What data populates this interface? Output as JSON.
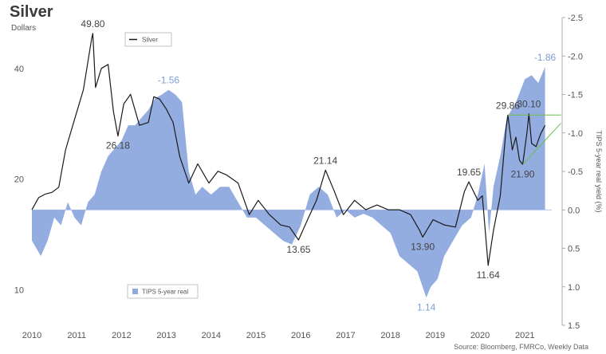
{
  "header": {
    "title": "Silver",
    "subtitle": "Dollars",
    "source": "Source: Bloomberg, FMRCo, Weekly Data"
  },
  "chart_data": {
    "type": "line",
    "x_range": [
      2010,
      2021.6
    ],
    "x_ticks": [
      "2010",
      "2011",
      "2012",
      "2013",
      "2014",
      "2015",
      "2016",
      "2017",
      "2018",
      "2019",
      "2020",
      "2021"
    ],
    "colors": {
      "silver": "#1a1a1a",
      "tips": "#8ea9df",
      "trend": "#6abf4b",
      "annotation_blue": "#7f9fd6"
    },
    "series": [
      {
        "name": "Silver",
        "axis": "left",
        "scale": "log",
        "ylim": [
          8,
          55
        ],
        "y_ticks": [
          "10",
          "20",
          "40"
        ],
        "points": [
          [
            2010.0,
            16.5
          ],
          [
            2010.15,
            17.8
          ],
          [
            2010.3,
            18.2
          ],
          [
            2010.45,
            18.4
          ],
          [
            2010.6,
            19.0
          ],
          [
            2010.75,
            24.0
          ],
          [
            2010.95,
            29.0
          ],
          [
            2011.15,
            35.0
          ],
          [
            2011.33,
            48.0
          ],
          [
            2011.36,
            49.8
          ],
          [
            2011.42,
            35.5
          ],
          [
            2011.55,
            40.0
          ],
          [
            2011.7,
            41.0
          ],
          [
            2011.82,
            30.5
          ],
          [
            2011.92,
            26.18
          ],
          [
            2012.05,
            32.0
          ],
          [
            2012.2,
            34.0
          ],
          [
            2012.4,
            28.0
          ],
          [
            2012.6,
            28.5
          ],
          [
            2012.72,
            33.5
          ],
          [
            2012.85,
            33.0
          ],
          [
            2013.0,
            31.0
          ],
          [
            2013.15,
            28.5
          ],
          [
            2013.3,
            23.0
          ],
          [
            2013.5,
            19.5
          ],
          [
            2013.7,
            22.0
          ],
          [
            2013.95,
            19.5
          ],
          [
            2014.15,
            21.0
          ],
          [
            2014.35,
            20.5
          ],
          [
            2014.6,
            19.5
          ],
          [
            2014.85,
            16.0
          ],
          [
            2015.05,
            17.5
          ],
          [
            2015.3,
            16.0
          ],
          [
            2015.55,
            15.0
          ],
          [
            2015.75,
            14.8
          ],
          [
            2015.95,
            13.65
          ],
          [
            2016.15,
            15.5
          ],
          [
            2016.35,
            17.5
          ],
          [
            2016.55,
            21.14
          ],
          [
            2016.75,
            18.5
          ],
          [
            2016.95,
            16.0
          ],
          [
            2017.2,
            17.5
          ],
          [
            2017.45,
            16.5
          ],
          [
            2017.7,
            17.0
          ],
          [
            2017.95,
            16.5
          ],
          [
            2018.2,
            16.5
          ],
          [
            2018.45,
            16.0
          ],
          [
            2018.65,
            14.5
          ],
          [
            2018.72,
            13.9
          ],
          [
            2018.95,
            15.5
          ],
          [
            2019.2,
            15.0
          ],
          [
            2019.45,
            14.8
          ],
          [
            2019.65,
            18.5
          ],
          [
            2019.75,
            19.65
          ],
          [
            2019.95,
            17.5
          ],
          [
            2020.05,
            18.0
          ],
          [
            2020.18,
            11.64
          ],
          [
            2020.3,
            14.5
          ],
          [
            2020.45,
            18.0
          ],
          [
            2020.58,
            27.5
          ],
          [
            2020.62,
            29.86
          ],
          [
            2020.72,
            24.0
          ],
          [
            2020.8,
            26.0
          ],
          [
            2020.88,
            22.5
          ],
          [
            2020.95,
            21.9
          ],
          [
            2021.05,
            27.0
          ],
          [
            2021.09,
            30.1
          ],
          [
            2021.15,
            25.0
          ],
          [
            2021.25,
            24.5
          ],
          [
            2021.35,
            26.5
          ],
          [
            2021.45,
            28.0
          ]
        ]
      },
      {
        "name": "TIPS 5-year real",
        "axis": "right",
        "ylabel": "TIPS 5-year real yield (%)",
        "inverted": true,
        "ylim": [
          1.5,
          -2.5
        ],
        "y_ticks": [
          "-2.5",
          "-2.0",
          "-1.5",
          "-1.0",
          "-0.5",
          "0.0",
          "0.5",
          "1.0",
          "1.5"
        ],
        "points": [
          [
            2010.0,
            0.4
          ],
          [
            2010.1,
            0.5
          ],
          [
            2010.2,
            0.6
          ],
          [
            2010.35,
            0.4
          ],
          [
            2010.5,
            0.1
          ],
          [
            2010.65,
            0.2
          ],
          [
            2010.8,
            -0.1
          ],
          [
            2010.95,
            0.1
          ],
          [
            2011.1,
            0.2
          ],
          [
            2011.25,
            -0.1
          ],
          [
            2011.4,
            -0.2
          ],
          [
            2011.55,
            -0.5
          ],
          [
            2011.7,
            -0.7
          ],
          [
            2011.85,
            -0.8
          ],
          [
            2012.0,
            -0.9
          ],
          [
            2012.15,
            -1.1
          ],
          [
            2012.3,
            -1.1
          ],
          [
            2012.45,
            -1.2
          ],
          [
            2012.6,
            -1.3
          ],
          [
            2012.75,
            -1.45
          ],
          [
            2012.9,
            -1.5
          ],
          [
            2013.05,
            -1.56
          ],
          [
            2013.2,
            -1.5
          ],
          [
            2013.35,
            -1.4
          ],
          [
            2013.5,
            -0.5
          ],
          [
            2013.65,
            -0.2
          ],
          [
            2013.8,
            -0.3
          ],
          [
            2014.0,
            -0.2
          ],
          [
            2014.2,
            -0.3
          ],
          [
            2014.4,
            -0.3
          ],
          [
            2014.6,
            -0.1
          ],
          [
            2014.8,
            0.1
          ],
          [
            2015.0,
            0.1
          ],
          [
            2015.2,
            0.2
          ],
          [
            2015.4,
            0.3
          ],
          [
            2015.6,
            0.4
          ],
          [
            2015.8,
            0.45
          ],
          [
            2016.0,
            0.2
          ],
          [
            2016.2,
            -0.2
          ],
          [
            2016.4,
            -0.3
          ],
          [
            2016.6,
            -0.2
          ],
          [
            2016.8,
            0.1
          ],
          [
            2017.0,
            0.0
          ],
          [
            2017.2,
            0.1
          ],
          [
            2017.4,
            0.05
          ],
          [
            2017.6,
            0.1
          ],
          [
            2017.8,
            0.2
          ],
          [
            2018.0,
            0.3
          ],
          [
            2018.2,
            0.6
          ],
          [
            2018.4,
            0.7
          ],
          [
            2018.6,
            0.8
          ],
          [
            2018.8,
            1.14
          ],
          [
            2018.9,
            1.0
          ],
          [
            2019.05,
            0.9
          ],
          [
            2019.2,
            0.6
          ],
          [
            2019.4,
            0.4
          ],
          [
            2019.6,
            0.2
          ],
          [
            2019.8,
            0.1
          ],
          [
            2019.95,
            -0.2
          ],
          [
            2020.1,
            -0.6
          ],
          [
            2020.2,
            0.3
          ],
          [
            2020.3,
            -0.3
          ],
          [
            2020.45,
            -0.7
          ],
          [
            2020.6,
            -1.2
          ],
          [
            2020.8,
            -1.4
          ],
          [
            2021.0,
            -1.7
          ],
          [
            2021.15,
            -1.75
          ],
          [
            2021.3,
            -1.65
          ],
          [
            2021.45,
            -1.86
          ]
        ]
      }
    ],
    "trendlines": [
      {
        "from": [
          2020.62,
          29.86
        ],
        "to": [
          2021.45,
          29.86
        ]
      },
      {
        "from": [
          2020.95,
          21.9
        ],
        "to": [
          2021.45,
          27.0
        ]
      }
    ],
    "annotations": [
      {
        "text": "49.80",
        "series": "Silver",
        "x": 2011.36,
        "y": 49.8,
        "pos": "above"
      },
      {
        "text": "26.18",
        "series": "Silver",
        "x": 2011.92,
        "y": 26.18,
        "pos": "below"
      },
      {
        "text": "21.14",
        "series": "Silver",
        "x": 2016.55,
        "y": 21.14,
        "pos": "above"
      },
      {
        "text": "13.65",
        "series": "Silver",
        "x": 2015.95,
        "y": 13.65,
        "pos": "below"
      },
      {
        "text": "13.90",
        "series": "Silver",
        "x": 2018.72,
        "y": 13.9,
        "pos": "below"
      },
      {
        "text": "19.65",
        "series": "Silver",
        "x": 2019.75,
        "y": 19.65,
        "pos": "above"
      },
      {
        "text": "11.64",
        "series": "Silver",
        "x": 2020.18,
        "y": 11.64,
        "pos": "below"
      },
      {
        "text": "29.86",
        "series": "Silver",
        "x": 2020.62,
        "y": 29.86,
        "pos": "above"
      },
      {
        "text": "30.10",
        "series": "Silver",
        "x": 2021.09,
        "y": 30.1,
        "pos": "above"
      },
      {
        "text": "21.90",
        "series": "Silver",
        "x": 2020.95,
        "y": 21.9,
        "pos": "below"
      },
      {
        "text": "-1.56",
        "series": "TIPS 5-year real",
        "x": 2013.05,
        "y": -1.56,
        "pos": "above"
      },
      {
        "text": "1.14",
        "series": "TIPS 5-year real",
        "x": 2018.8,
        "y": 1.14,
        "pos": "below"
      },
      {
        "text": "-1.86",
        "series": "TIPS 5-year real",
        "x": 2021.45,
        "y": -1.86,
        "pos": "above"
      }
    ],
    "legend": [
      "Silver",
      "TIPS 5-year real"
    ],
    "grid": false
  }
}
